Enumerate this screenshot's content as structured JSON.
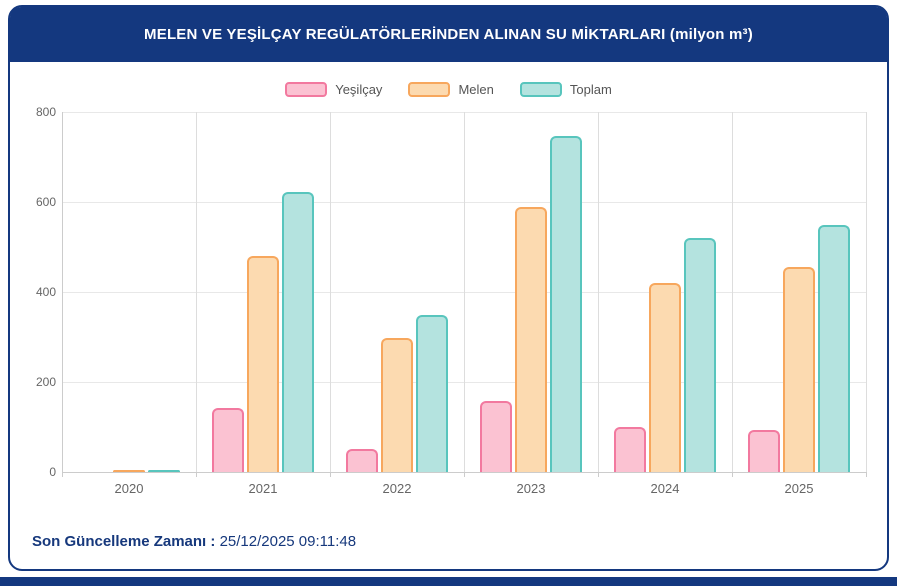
{
  "header": {
    "title": "MELEN VE YEŞİLÇAY REGÜLATÖRLERİNDEN ALINAN SU MİKTARLARI (milyon m³)"
  },
  "footer": {
    "label": "Son Güncelleme Zamanı :",
    "value": "25/12/2025 09:11:48"
  },
  "colors": {
    "navy": "#14387f",
    "grid_h": "#e8e8e8",
    "grid_v": "#dddddd",
    "axis": "#cccccc",
    "tick_text": "#666666",
    "legend_text": "#555555"
  },
  "chart_data": {
    "type": "bar",
    "title": "MELEN VE YEŞİLÇAY REGÜLATÖRLERİNDEN ALINAN SU MİKTARLARI (milyon m³)",
    "categories": [
      "2020",
      "2021",
      "2022",
      "2023",
      "2024",
      "2025"
    ],
    "series": [
      {
        "name": "Yeşilçay",
        "values": [
          1,
          143,
          52,
          157,
          99,
          93
        ],
        "fill": "#fbc2d2",
        "border": "#f2799f"
      },
      {
        "name": "Melen",
        "values": [
          4,
          479,
          298,
          590,
          421,
          455
        ],
        "fill": "#fcdab0",
        "border": "#f7a75d"
      },
      {
        "name": "Toplam",
        "values": [
          5,
          622,
          350,
          747,
          520,
          548
        ],
        "fill": "#b4e3df",
        "border": "#58c5bd"
      }
    ],
    "xlabel": "",
    "ylabel": "",
    "ylim": [
      0,
      800
    ],
    "yticks": [
      0,
      200,
      400,
      600,
      800
    ],
    "grid": true,
    "legend_position": "top"
  }
}
